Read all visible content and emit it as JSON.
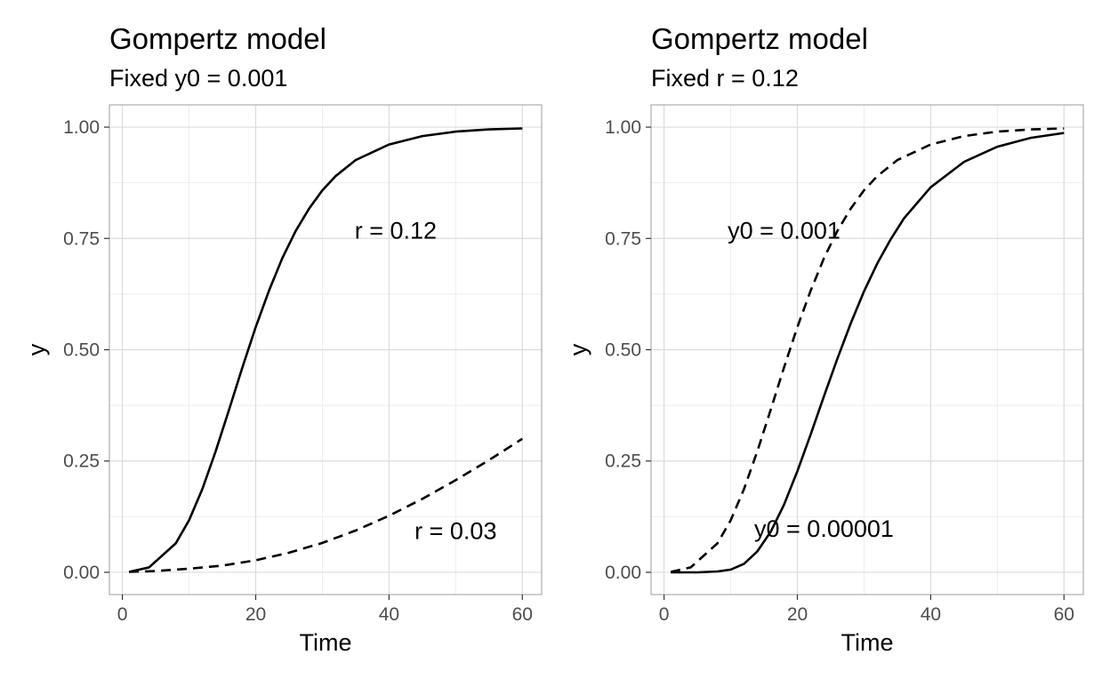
{
  "chart_data": [
    {
      "type": "line",
      "title": "Gompertz model",
      "subtitle": "Fixed y0 = 0.001",
      "xlabel": "Time",
      "ylabel": "y",
      "xlim": [
        0,
        60
      ],
      "ylim": [
        0,
        1
      ],
      "xticks": [
        0,
        20,
        40,
        60
      ],
      "xtick_labels": [
        "0",
        "20",
        "40",
        "60"
      ],
      "yticks": [
        0,
        0.25,
        0.5,
        0.75,
        1
      ],
      "ytick_labels": [
        "0.00",
        "0.25",
        "0.50",
        "0.75",
        "1.00"
      ],
      "grid": true,
      "legend": "none",
      "series": [
        {
          "linestyle": "solid",
          "x": [
            1,
            4,
            8,
            10,
            12,
            14,
            16,
            18,
            20,
            22,
            24,
            26,
            28,
            30,
            32,
            35,
            40,
            45,
            50,
            55,
            60
          ],
          "y": [
            0.001,
            0.011,
            0.065,
            0.117,
            0.187,
            0.272,
            0.365,
            0.46,
            0.551,
            0.633,
            0.706,
            0.767,
            0.817,
            0.858,
            0.89,
            0.926,
            0.961,
            0.98,
            0.99,
            0.995,
            0.997
          ]
        },
        {
          "linestyle": "dashed",
          "x": [
            1,
            5,
            10,
            15,
            20,
            25,
            30,
            35,
            40,
            45,
            50,
            55,
            60
          ],
          "y": [
            0.001,
            0.003,
            0.008,
            0.015,
            0.027,
            0.044,
            0.066,
            0.094,
            0.127,
            0.165,
            0.207,
            0.252,
            0.3
          ]
        }
      ],
      "annotations": [
        {
          "text": "r = 0.12",
          "x": 41,
          "y": 0.77
        },
        {
          "text": "r = 0.03",
          "x": 50,
          "y": 0.095
        }
      ]
    },
    {
      "type": "line",
      "title": "Gompertz model",
      "subtitle": "Fixed r = 0.12",
      "xlabel": "Time",
      "ylabel": "y",
      "xlim": [
        0,
        60
      ],
      "ylim": [
        0,
        1
      ],
      "xticks": [
        0,
        20,
        40,
        60
      ],
      "xtick_labels": [
        "0",
        "20",
        "40",
        "60"
      ],
      "yticks": [
        0,
        0.25,
        0.5,
        0.75,
        1
      ],
      "ytick_labels": [
        "0.00",
        "0.25",
        "0.50",
        "0.75",
        "1.00"
      ],
      "grid": true,
      "legend": "none",
      "series": [
        {
          "linestyle": "dashed",
          "x": [
            1,
            4,
            8,
            10,
            12,
            14,
            16,
            18,
            20,
            22,
            24,
            26,
            28,
            30,
            32,
            35,
            40,
            45,
            50,
            55,
            60
          ],
          "y": [
            0.001,
            0.011,
            0.065,
            0.117,
            0.187,
            0.272,
            0.365,
            0.46,
            0.551,
            0.633,
            0.706,
            0.767,
            0.817,
            0.858,
            0.89,
            0.926,
            0.961,
            0.98,
            0.99,
            0.995,
            0.997
          ]
        },
        {
          "linestyle": "solid",
          "x": [
            1,
            5,
            8,
            10,
            12,
            14,
            16,
            18,
            20,
            22,
            24,
            26,
            28,
            30,
            32,
            34,
            36,
            40,
            45,
            50,
            55,
            60
          ],
          "y": [
            0.0,
            0.0,
            0.002,
            0.006,
            0.019,
            0.047,
            0.091,
            0.152,
            0.227,
            0.31,
            0.396,
            0.48,
            0.559,
            0.631,
            0.694,
            0.748,
            0.795,
            0.865,
            0.922,
            0.956,
            0.976,
            0.987
          ]
        }
      ],
      "annotations": [
        {
          "text": "y0 = 0.001",
          "x": 18,
          "y": 0.77
        },
        {
          "text": "y0 = 0.00001",
          "x": 24,
          "y": 0.1
        }
      ]
    }
  ]
}
